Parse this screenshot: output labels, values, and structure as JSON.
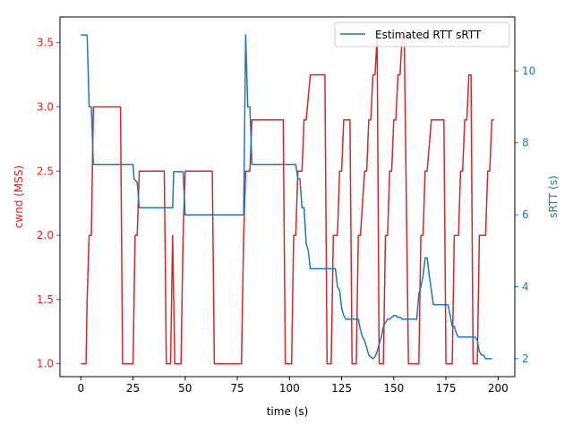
{
  "chart_data": {
    "type": "line",
    "xlabel": "time (s)",
    "ylabel_left": "cwnd (MSS)",
    "ylabel_right": "sRTT (s)",
    "xlim": [
      -10,
      208
    ],
    "ylim_left": [
      0.9,
      3.7
    ],
    "ylim_right": [
      1.5,
      11.5
    ],
    "x_ticks": [
      0,
      25,
      50,
      75,
      100,
      125,
      150,
      175,
      200
    ],
    "y_left_ticks": [
      "1.0",
      "1.5",
      "2.0",
      "2.5",
      "3.0",
      "3.5"
    ],
    "y_right_ticks": [
      "2",
      "4",
      "6",
      "8",
      "10"
    ],
    "grid": false,
    "legend_position": "top-right",
    "colors": {
      "cwnd": "#d62728",
      "srtt": "#1f77b4",
      "axis": "#000000"
    },
    "series": [
      {
        "key": "cwnd",
        "axis": "left",
        "x": [
          0,
          2.5,
          3,
          4,
          5,
          6,
          19,
          20,
          25,
          26,
          27,
          28,
          40,
          41,
          43,
          44,
          45,
          46,
          48,
          49,
          50,
          63,
          64,
          77,
          78,
          79,
          81,
          82,
          97,
          98,
          101,
          102,
          103,
          104,
          106,
          107,
          108,
          110,
          117,
          118,
          120,
          121,
          123,
          124,
          125,
          126,
          129,
          130,
          132,
          133,
          134,
          136,
          137,
          138,
          139,
          140,
          141,
          142,
          143,
          145,
          146,
          147,
          148,
          149,
          150,
          151,
          152,
          153,
          154,
          155,
          157,
          158,
          162,
          163,
          164,
          165,
          166,
          168,
          169,
          174,
          175,
          178,
          179,
          181,
          182,
          183,
          184,
          185,
          186,
          187,
          188,
          190,
          191,
          194,
          195,
          196,
          197,
          198
        ],
        "y": [
          1.0,
          1.0,
          1.5,
          2.0,
          2.0,
          3.0,
          3.0,
          1.0,
          1.0,
          2.0,
          2.0,
          2.5,
          2.5,
          1.0,
          1.0,
          2.0,
          1.0,
          1.0,
          1.0,
          2.0,
          2.5,
          2.5,
          1.0,
          1.0,
          2.0,
          2.5,
          2.5,
          2.9,
          2.9,
          1.0,
          1.0,
          2.0,
          2.0,
          2.5,
          2.5,
          2.9,
          2.9,
          3.25,
          3.25,
          1.0,
          1.0,
          2.0,
          2.0,
          2.5,
          2.5,
          2.9,
          2.9,
          1.0,
          1.0,
          2.0,
          2.0,
          2.5,
          2.5,
          2.9,
          2.9,
          3.25,
          3.25,
          3.55,
          1.0,
          1.0,
          2.0,
          2.0,
          2.5,
          2.5,
          2.9,
          2.9,
          3.25,
          3.25,
          3.55,
          3.55,
          1.0,
          1.0,
          1.0,
          2.0,
          2.0,
          2.5,
          2.5,
          2.9,
          2.9,
          2.9,
          1.0,
          1.0,
          2.0,
          2.0,
          2.5,
          2.5,
          2.9,
          2.9,
          3.25,
          3.25,
          1.0,
          1.0,
          2.0,
          2.0,
          2.5,
          2.5,
          2.9,
          2.9
        ]
      },
      {
        "key": "srtt",
        "name": "Estimated RTT sRTT",
        "axis": "right",
        "x": [
          0,
          3,
          3.5,
          4,
          5,
          6,
          25,
          25.5,
          27,
          28,
          44,
          44.5,
          49,
          50,
          77,
          78,
          79,
          80,
          81,
          82,
          103,
          104,
          105,
          106,
          107,
          108,
          109,
          110,
          122,
          123,
          124,
          125,
          126,
          127,
          133,
          134,
          135,
          136,
          137,
          138,
          139,
          140,
          141,
          142,
          143,
          144,
          145,
          146,
          147,
          148,
          149,
          150,
          151,
          152,
          153,
          154,
          155,
          161,
          162,
          163,
          164,
          165,
          166,
          167,
          168,
          169,
          176,
          177,
          178,
          179,
          180,
          181,
          182,
          189,
          190,
          191,
          192,
          193,
          194,
          197
        ],
        "y": [
          11.0,
          11.0,
          10.0,
          9.0,
          9.0,
          7.4,
          7.4,
          7.0,
          6.9,
          6.2,
          6.2,
          7.2,
          7.2,
          6.0,
          6.0,
          6.0,
          11.0,
          9.0,
          9.0,
          7.4,
          7.4,
          7.0,
          7.0,
          6.2,
          6.2,
          5.2,
          5.0,
          4.5,
          4.5,
          4.0,
          3.9,
          3.4,
          3.2,
          3.1,
          3.1,
          2.8,
          2.6,
          2.5,
          2.3,
          2.1,
          2.05,
          2.0,
          2.05,
          2.2,
          2.4,
          2.6,
          2.9,
          3.0,
          3.1,
          3.1,
          3.15,
          3.2,
          3.2,
          3.15,
          3.15,
          3.1,
          3.1,
          3.1,
          3.8,
          4.0,
          4.3,
          4.8,
          4.8,
          4.3,
          3.9,
          3.5,
          3.5,
          3.2,
          2.9,
          2.9,
          2.7,
          2.6,
          2.6,
          2.6,
          2.5,
          2.2,
          2.1,
          2.1,
          2.0,
          2.0
        ]
      }
    ]
  }
}
